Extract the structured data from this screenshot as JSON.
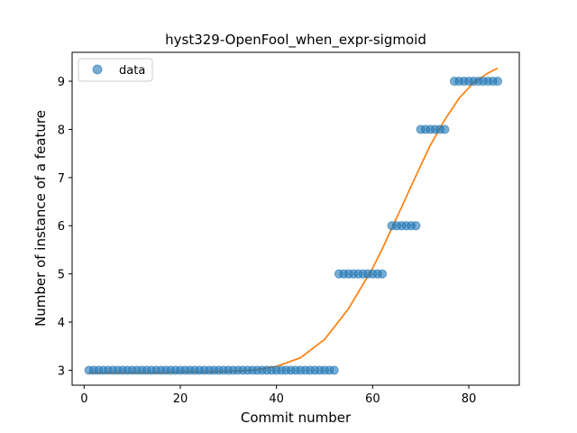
{
  "chart_data": {
    "type": "scatter",
    "title": "hyst329-OpenFool_when_expr-sigmoid",
    "xlabel": "Commit number",
    "ylabel": "Number of instance of a feature",
    "xlim": [
      -2.5,
      90.5
    ],
    "ylim": [
      2.69,
      9.6
    ],
    "xticks": [
      0,
      20,
      40,
      60,
      80
    ],
    "yticks": [
      3,
      4,
      5,
      6,
      7,
      8,
      9
    ],
    "grid": false,
    "legend": {
      "position": "top-left",
      "entries": [
        "data"
      ]
    },
    "series": [
      {
        "name": "data",
        "kind": "scatter",
        "color": "#1f77b4",
        "x": [
          1,
          2,
          3,
          4,
          5,
          6,
          7,
          8,
          9,
          10,
          11,
          12,
          13,
          14,
          15,
          16,
          17,
          18,
          19,
          20,
          21,
          22,
          23,
          24,
          25,
          26,
          27,
          28,
          29,
          30,
          31,
          32,
          33,
          34,
          35,
          36,
          37,
          38,
          39,
          40,
          41,
          42,
          43,
          44,
          45,
          46,
          47,
          48,
          49,
          50,
          51,
          52,
          53,
          54,
          55,
          56,
          57,
          58,
          59,
          60,
          61,
          62,
          64,
          65,
          66,
          67,
          68,
          69,
          70,
          71,
          72,
          73,
          74,
          75,
          77,
          78,
          79,
          80,
          81,
          82,
          83,
          84,
          85,
          86
        ],
        "y": [
          3,
          3,
          3,
          3,
          3,
          3,
          3,
          3,
          3,
          3,
          3,
          3,
          3,
          3,
          3,
          3,
          3,
          3,
          3,
          3,
          3,
          3,
          3,
          3,
          3,
          3,
          3,
          3,
          3,
          3,
          3,
          3,
          3,
          3,
          3,
          3,
          3,
          3,
          3,
          3,
          3,
          3,
          3,
          3,
          3,
          3,
          3,
          3,
          3,
          3,
          3,
          3,
          5,
          5,
          5,
          5,
          5,
          5,
          5,
          5,
          5,
          5,
          6,
          6,
          6,
          6,
          6,
          6,
          8,
          8,
          8,
          8,
          8,
          8,
          9,
          9,
          9,
          9,
          9,
          9,
          9,
          9,
          9,
          9
        ]
      },
      {
        "kind": "line",
        "color": "#ff7f0e",
        "x": [
          1,
          5,
          10,
          15,
          20,
          25,
          30,
          35,
          40,
          45,
          50,
          55,
          60,
          62,
          64,
          66,
          68,
          70,
          72,
          75,
          78,
          81,
          84,
          86
        ],
        "y": [
          2.95,
          2.95,
          2.95,
          2.95,
          2.96,
          2.96,
          2.97,
          3.0,
          3.08,
          3.26,
          3.64,
          4.28,
          5.12,
          5.52,
          5.95,
          6.38,
          6.82,
          7.25,
          7.67,
          8.2,
          8.65,
          8.97,
          9.17,
          9.27
        ]
      }
    ]
  }
}
